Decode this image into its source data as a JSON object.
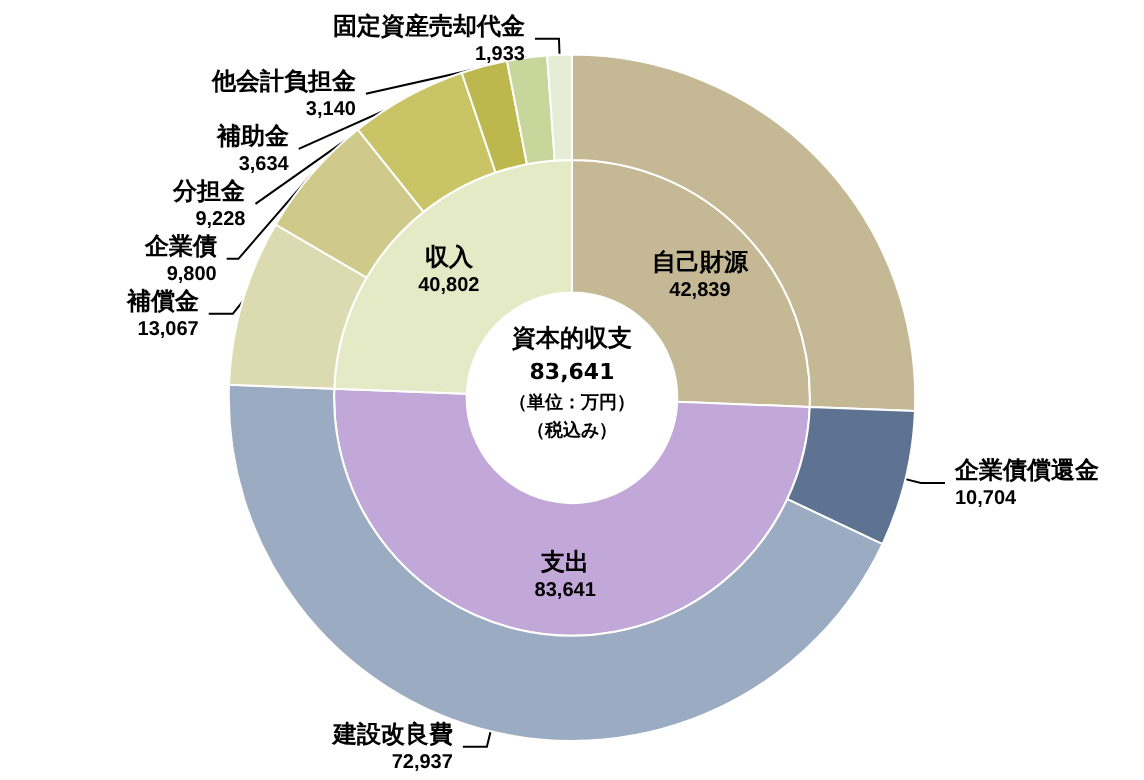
{
  "chart_data": [
    {
      "type": "donut",
      "title": "資本的収支",
      "annotations": [
        "83,641",
        "（単位：万円）",
        "（税込み）"
      ],
      "legend": false,
      "categories": [
        "自己財源",
        "支出",
        "収入"
      ],
      "values": [
        42839,
        83641,
        40802
      ],
      "value_labels": [
        "42,839",
        "83,641",
        "40,802"
      ],
      "colors": [
        "#c4b994",
        "#c2a8d8",
        "#e4e9c6"
      ]
    },
    {
      "type": "donut",
      "legend": false,
      "categories": [
        null,
        "企業債償還金",
        "建設改良費",
        "補償金",
        "企業債",
        "分担金",
        "補助金",
        "他会計負担金",
        "固定資産売却代金"
      ],
      "values": [
        42839,
        10704,
        72937,
        13067,
        9800,
        9228,
        3634,
        3140,
        1933
      ],
      "value_labels": [
        null,
        "10,704",
        "72,937",
        "13,067",
        "9,800",
        "9,228",
        "3,634",
        "3,140",
        "1,933"
      ],
      "colors": [
        "#c4b994",
        "#5e7391",
        "#9aabc2",
        "#dcdab0",
        "#cfc98a",
        "#c9c466",
        "#bdb84e",
        "#c7d79c",
        "#e6ecd6"
      ]
    }
  ]
}
